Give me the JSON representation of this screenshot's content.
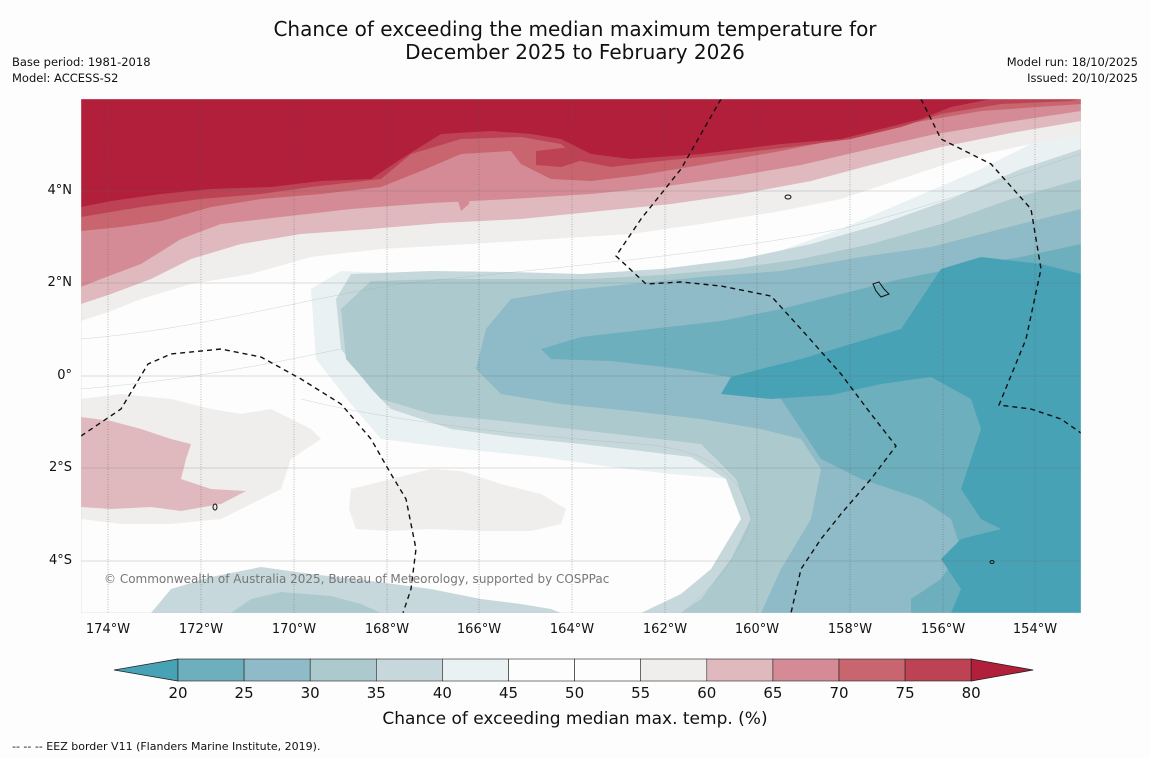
{
  "title_line1": "Chance of exceeding the median maximum temperature for",
  "title_line2": "December 2025 to February 2026",
  "meta_left": {
    "base_period": "Base period: 1981-2018",
    "model": "Model: ACCESS-S2"
  },
  "meta_right": {
    "model_run": "Model run: 18/10/2025",
    "issued": "Issued: 20/10/2025"
  },
  "map": {
    "x_ticks": [
      "174°W",
      "172°W",
      "170°W",
      "168°W",
      "166°W",
      "164°W",
      "162°W",
      "160°W",
      "158°W",
      "156°W",
      "154°W"
    ],
    "y_ticks": [
      "4°N",
      "2°N",
      "0°",
      "2°S",
      "4°S"
    ],
    "copyright": "© Commonwealth of Australia 2025, Bureau of Meteorology, supported by COSPPac"
  },
  "colorbar": {
    "ticks": [
      "20",
      "25",
      "30",
      "35",
      "40",
      "45",
      "50",
      "55",
      "60",
      "65",
      "70",
      "75",
      "80"
    ],
    "colors": {
      "lt20": "#48a2b5",
      "c20": "#6dafbd",
      "c25": "#8ebbc7",
      "c30": "#acc9ce",
      "c35": "#c7d8dc",
      "c40": "#e9f1f3",
      "c45": "#fdfdfd",
      "c50": "#fdfdfd",
      "c55": "#efeeed",
      "c60": "#e0b9be",
      "c65": "#d48b95",
      "c70": "#c8656f",
      "c75": "#bd4354",
      "gt80": "#b21f3a"
    },
    "label": "Chance of exceeding median max. temp. (%)"
  },
  "footnote": "--  --  -- EEZ border V11 (Flanders Marine Institute, 2019)."
}
